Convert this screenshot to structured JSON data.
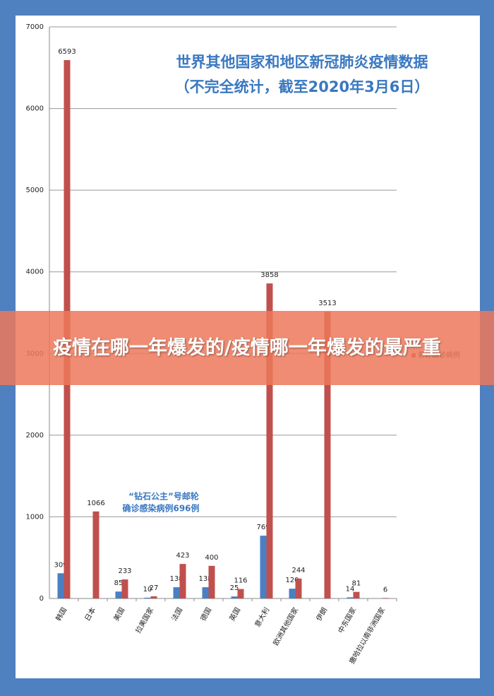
{
  "chart_data": {
    "type": "bar",
    "title": "世界其他国家和地区新冠肺炎疫情数据",
    "subtitle": "（不完全统计，截至2020年3月6日）",
    "annotation": [
      "“钻石公主”号邮轮",
      "确诊感染病例696例"
    ],
    "banner": "疫情在哪一年爆发的/疫情哪一年爆发的最严重",
    "categories": [
      "韩国",
      "日本",
      "美国",
      "拉美国家",
      "法国",
      "德国",
      "英国",
      "意大利",
      "欧洲其他国家",
      "伊朗",
      "中东国家",
      "撒哈拉以南非洲国家"
    ],
    "series": [
      {
        "color": "#4a7fc4",
        "values": [
          309,
          null,
          85,
          10,
          138,
          138,
          25,
          769,
          120,
          null,
          14,
          null
        ]
      },
      {
        "name": "累计确诊病例",
        "color": "#c0504d",
        "values": [
          6593,
          1066,
          233,
          27,
          423,
          400,
          116,
          3858,
          244,
          3513,
          81,
          6
        ]
      }
    ],
    "ylim": [
      0,
      7000
    ],
    "yticks": [
      0,
      1000,
      2000,
      3000,
      4000,
      5000,
      6000,
      7000
    ],
    "grid": true
  }
}
